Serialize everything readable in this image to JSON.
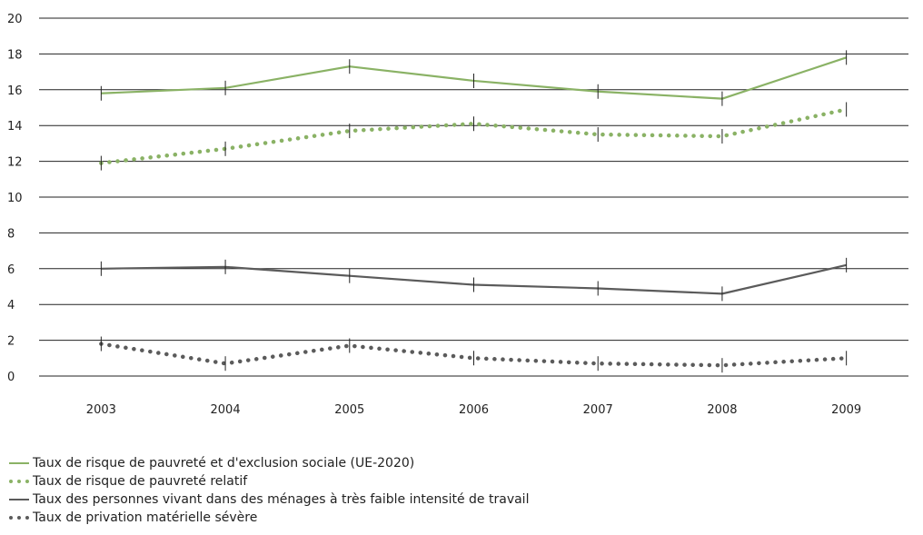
{
  "chart_data": {
    "type": "line",
    "x": [
      "2003",
      "2004",
      "2005",
      "2006",
      "2007",
      "2008",
      "2009"
    ],
    "ylim": [
      0,
      20
    ],
    "yticks": [
      0,
      2,
      4,
      6,
      8,
      10,
      12,
      14,
      16,
      18,
      20
    ],
    "grid": true,
    "legend_position": "bottom-left",
    "series": [
      {
        "name": "Taux de risque de pauvreté et d'exclusion sociale (UE-2020)",
        "values": [
          15.8,
          16.1,
          17.3,
          16.5,
          15.9,
          15.5,
          17.8
        ],
        "color": "#8ab265",
        "style": "solid",
        "error_bars": true
      },
      {
        "name": "Taux de risque de pauvreté relatif",
        "values": [
          11.9,
          12.7,
          13.7,
          14.1,
          13.5,
          13.4,
          14.9
        ],
        "color": "#8ab265",
        "style": "dotted",
        "error_bars": true
      },
      {
        "name": "Taux des personnes vivant dans des ménages à très faible intensité de travail",
        "values": [
          6.0,
          6.1,
          5.6,
          5.1,
          4.9,
          4.6,
          6.2
        ],
        "color": "#5b5b5b",
        "style": "solid",
        "error_bars": true
      },
      {
        "name": "Taux de privation matérielle sévère",
        "values": [
          1.8,
          0.7,
          1.7,
          1.0,
          0.7,
          0.6,
          1.0
        ],
        "color": "#5b5b5b",
        "style": "dotted",
        "error_bars": true
      }
    ]
  }
}
